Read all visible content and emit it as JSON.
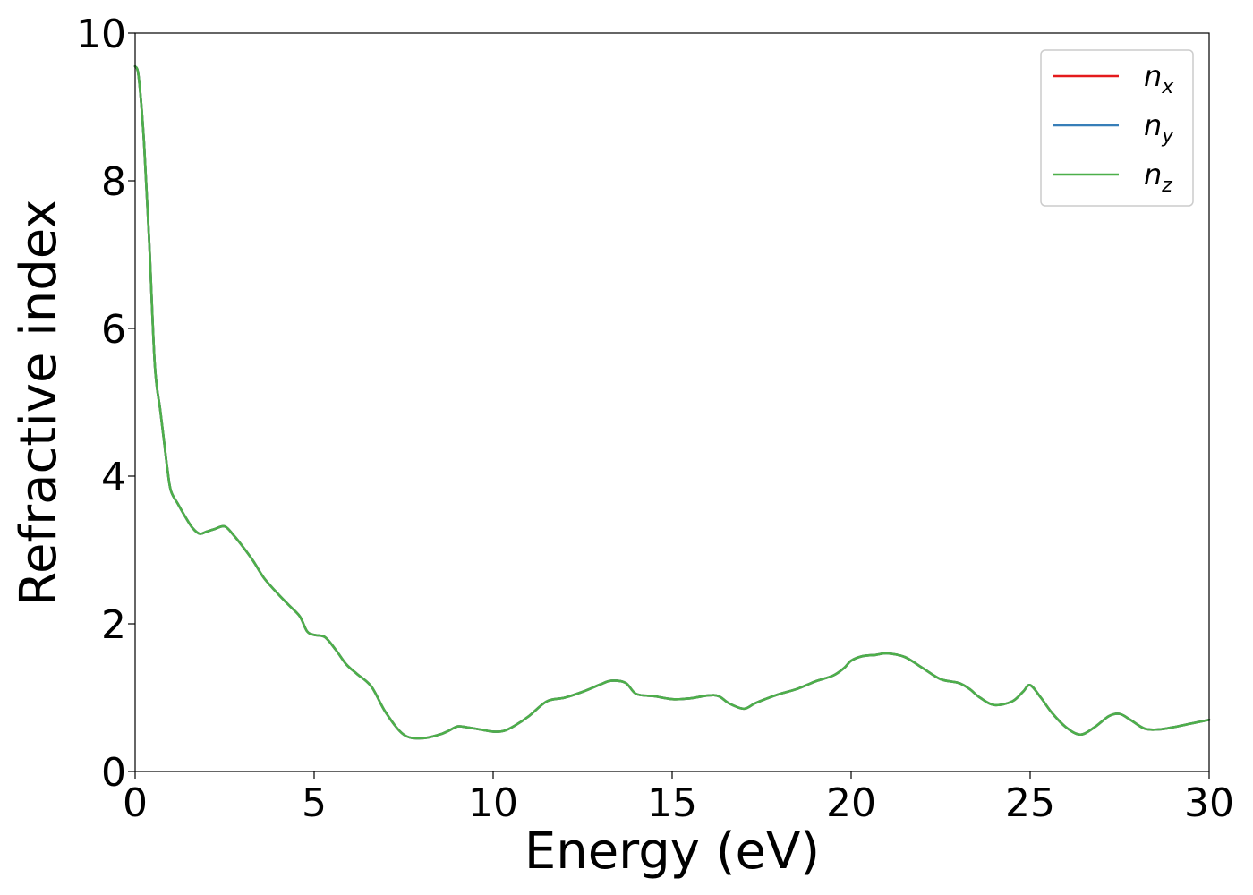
{
  "chart_data": {
    "type": "line",
    "xlabel": "Energy (eV)",
    "ylabel": "Refractive index",
    "xlim": [
      0,
      30
    ],
    "ylim": [
      0,
      10
    ],
    "x_ticks": [
      0,
      5,
      10,
      15,
      20,
      25,
      30
    ],
    "y_ticks": [
      0,
      2,
      4,
      6,
      8,
      10
    ],
    "grid": false,
    "legend_position": "top-right",
    "series": [
      {
        "name": "n_x",
        "base": "n",
        "sub": "x",
        "color": "#e41a1c",
        "x": [
          0,
          0.1,
          0.25,
          0.4,
          0.55,
          0.7,
          0.8,
          0.9,
          1.0,
          1.2,
          1.4,
          1.6,
          1.8,
          2.0,
          2.2,
          2.5,
          2.75,
          3.0,
          3.3,
          3.6,
          4.0,
          4.3,
          4.6,
          4.8,
          5.0,
          5.3,
          5.6,
          5.9,
          6.2,
          6.6,
          7.0,
          7.5,
          8.0,
          8.5,
          8.75,
          9.0,
          9.25,
          9.5,
          10.0,
          10.3,
          10.6,
          11.0,
          11.5,
          12.0,
          12.5,
          13.0,
          13.3,
          13.7,
          14.0,
          14.5,
          15.0,
          15.5,
          16.0,
          16.3,
          16.6,
          17.0,
          17.3,
          17.6,
          18.0,
          18.5,
          19.0,
          19.5,
          19.8,
          20.0,
          20.3,
          20.7,
          21.0,
          21.5,
          22.0,
          22.5,
          23.0,
          23.3,
          23.6,
          24.0,
          24.5,
          24.8,
          25.0,
          25.3,
          25.6,
          26.0,
          26.4,
          26.8,
          27.2,
          27.5,
          27.8,
          28.2,
          28.6,
          29.0,
          29.5,
          30.0
        ],
        "y": [
          9.55,
          9.4,
          8.5,
          7.1,
          5.5,
          4.9,
          4.5,
          4.1,
          3.8,
          3.62,
          3.45,
          3.3,
          3.22,
          3.25,
          3.28,
          3.32,
          3.2,
          3.05,
          2.85,
          2.62,
          2.4,
          2.25,
          2.1,
          1.9,
          1.85,
          1.82,
          1.65,
          1.45,
          1.32,
          1.15,
          0.8,
          0.5,
          0.45,
          0.5,
          0.55,
          0.61,
          0.6,
          0.58,
          0.54,
          0.55,
          0.62,
          0.75,
          0.95,
          1.0,
          1.08,
          1.18,
          1.23,
          1.2,
          1.05,
          1.02,
          0.98,
          0.99,
          1.03,
          1.02,
          0.92,
          0.85,
          0.92,
          0.98,
          1.05,
          1.12,
          1.22,
          1.3,
          1.4,
          1.5,
          1.56,
          1.58,
          1.6,
          1.55,
          1.4,
          1.25,
          1.2,
          1.12,
          1.0,
          0.9,
          0.95,
          1.08,
          1.17,
          1.0,
          0.8,
          0.6,
          0.5,
          0.6,
          0.75,
          0.78,
          0.7,
          0.58,
          0.57,
          0.6,
          0.65,
          0.7
        ]
      },
      {
        "name": "n_y",
        "base": "n",
        "sub": "y",
        "color": "#377eb8",
        "x": [
          0,
          0.1,
          0.25,
          0.4,
          0.55,
          0.7,
          0.8,
          0.9,
          1.0,
          1.2,
          1.4,
          1.6,
          1.8,
          2.0,
          2.2,
          2.5,
          2.75,
          3.0,
          3.3,
          3.6,
          4.0,
          4.3,
          4.6,
          4.8,
          5.0,
          5.3,
          5.6,
          5.9,
          6.2,
          6.6,
          7.0,
          7.5,
          8.0,
          8.5,
          8.75,
          9.0,
          9.25,
          9.5,
          10.0,
          10.3,
          10.6,
          11.0,
          11.5,
          12.0,
          12.5,
          13.0,
          13.3,
          13.7,
          14.0,
          14.5,
          15.0,
          15.5,
          16.0,
          16.3,
          16.6,
          17.0,
          17.3,
          17.6,
          18.0,
          18.5,
          19.0,
          19.5,
          19.8,
          20.0,
          20.3,
          20.7,
          21.0,
          21.5,
          22.0,
          22.5,
          23.0,
          23.3,
          23.6,
          24.0,
          24.5,
          24.8,
          25.0,
          25.3,
          25.6,
          26.0,
          26.4,
          26.8,
          27.2,
          27.5,
          27.8,
          28.2,
          28.6,
          29.0,
          29.5,
          30.0
        ],
        "y": [
          9.55,
          9.4,
          8.5,
          7.1,
          5.5,
          4.9,
          4.5,
          4.1,
          3.8,
          3.62,
          3.45,
          3.3,
          3.22,
          3.25,
          3.28,
          3.32,
          3.2,
          3.05,
          2.85,
          2.62,
          2.4,
          2.25,
          2.1,
          1.9,
          1.85,
          1.82,
          1.65,
          1.45,
          1.32,
          1.15,
          0.8,
          0.5,
          0.45,
          0.5,
          0.55,
          0.61,
          0.6,
          0.58,
          0.54,
          0.55,
          0.62,
          0.75,
          0.95,
          1.0,
          1.08,
          1.18,
          1.23,
          1.2,
          1.05,
          1.02,
          0.98,
          0.99,
          1.03,
          1.02,
          0.92,
          0.85,
          0.92,
          0.98,
          1.05,
          1.12,
          1.22,
          1.3,
          1.4,
          1.5,
          1.56,
          1.58,
          1.6,
          1.55,
          1.4,
          1.25,
          1.2,
          1.12,
          1.0,
          0.9,
          0.95,
          1.08,
          1.17,
          1.0,
          0.8,
          0.6,
          0.5,
          0.6,
          0.75,
          0.78,
          0.7,
          0.58,
          0.57,
          0.6,
          0.65,
          0.7
        ]
      },
      {
        "name": "n_z",
        "base": "n",
        "sub": "z",
        "color": "#4daf4a",
        "x": [
          0,
          0.1,
          0.25,
          0.4,
          0.55,
          0.7,
          0.8,
          0.9,
          1.0,
          1.2,
          1.4,
          1.6,
          1.8,
          2.0,
          2.2,
          2.5,
          2.75,
          3.0,
          3.3,
          3.6,
          4.0,
          4.3,
          4.6,
          4.8,
          5.0,
          5.3,
          5.6,
          5.9,
          6.2,
          6.6,
          7.0,
          7.5,
          8.0,
          8.5,
          8.75,
          9.0,
          9.25,
          9.5,
          10.0,
          10.3,
          10.6,
          11.0,
          11.5,
          12.0,
          12.5,
          13.0,
          13.3,
          13.7,
          14.0,
          14.5,
          15.0,
          15.5,
          16.0,
          16.3,
          16.6,
          17.0,
          17.3,
          17.6,
          18.0,
          18.5,
          19.0,
          19.5,
          19.8,
          20.0,
          20.3,
          20.7,
          21.0,
          21.5,
          22.0,
          22.5,
          23.0,
          23.3,
          23.6,
          24.0,
          24.5,
          24.8,
          25.0,
          25.3,
          25.6,
          26.0,
          26.4,
          26.8,
          27.2,
          27.5,
          27.8,
          28.2,
          28.6,
          29.0,
          29.5,
          30.0
        ],
        "y": [
          9.55,
          9.4,
          8.5,
          7.1,
          5.5,
          4.9,
          4.5,
          4.1,
          3.8,
          3.62,
          3.45,
          3.3,
          3.22,
          3.25,
          3.28,
          3.32,
          3.2,
          3.05,
          2.85,
          2.62,
          2.4,
          2.25,
          2.1,
          1.9,
          1.85,
          1.82,
          1.65,
          1.45,
          1.32,
          1.15,
          0.8,
          0.5,
          0.45,
          0.5,
          0.55,
          0.61,
          0.6,
          0.58,
          0.54,
          0.55,
          0.62,
          0.75,
          0.95,
          1.0,
          1.08,
          1.18,
          1.23,
          1.2,
          1.05,
          1.02,
          0.98,
          0.99,
          1.03,
          1.02,
          0.92,
          0.85,
          0.92,
          0.98,
          1.05,
          1.12,
          1.22,
          1.3,
          1.4,
          1.5,
          1.56,
          1.58,
          1.6,
          1.55,
          1.4,
          1.25,
          1.2,
          1.12,
          1.0,
          0.9,
          0.95,
          1.08,
          1.17,
          1.0,
          0.8,
          0.6,
          0.5,
          0.6,
          0.75,
          0.78,
          0.7,
          0.58,
          0.57,
          0.6,
          0.65,
          0.7
        ]
      }
    ]
  }
}
